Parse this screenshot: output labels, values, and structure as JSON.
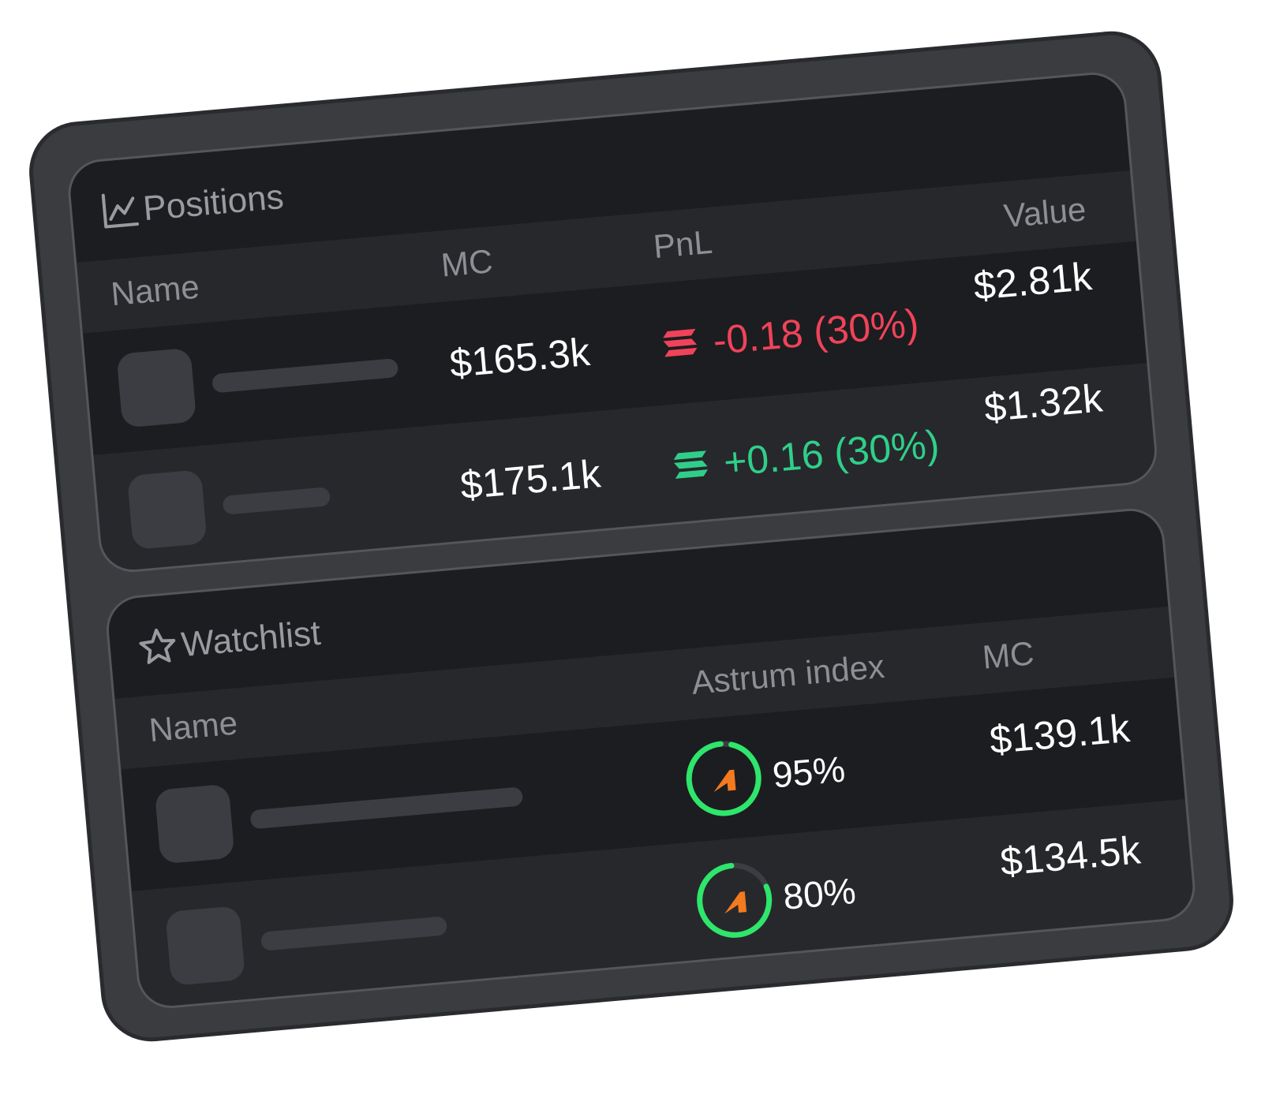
{
  "positions": {
    "title": "Positions",
    "headers": {
      "name": "Name",
      "mc": "MC",
      "pnl": "PnL",
      "value": "Value"
    },
    "rows": [
      {
        "mc": "$165.3k",
        "pnl": "-0.18 (30%)",
        "pnl_color": "#f0435a",
        "value": "$2.81k"
      },
      {
        "mc": "$175.1k",
        "pnl": "+0.16 (30%)",
        "pnl_color": "#2fcf8a",
        "value": "$1.32k"
      }
    ]
  },
  "watchlist": {
    "title": "Watchlist",
    "headers": {
      "name": "Name",
      "index": "Astrum index",
      "mc": "MC"
    },
    "rows": [
      {
        "index": {
          "value": 95,
          "label": "95%"
        },
        "mc": "$139.1k"
      },
      {
        "index": {
          "value": 80,
          "label": "80%"
        },
        "mc": "$134.5k"
      }
    ]
  }
}
